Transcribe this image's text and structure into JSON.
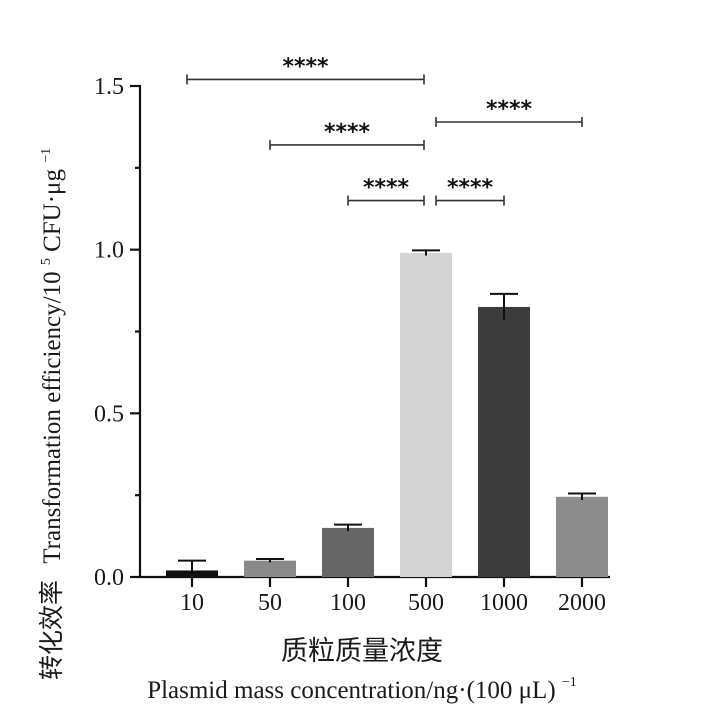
{
  "chart_data": {
    "type": "bar",
    "categories": [
      "10",
      "50",
      "100",
      "500",
      "1000",
      "2000"
    ],
    "values": [
      0.02,
      0.05,
      0.15,
      0.99,
      0.825,
      0.245
    ],
    "errors": [
      0.03,
      0.005,
      0.01,
      0.008,
      0.04,
      0.01
    ],
    "bar_colors": [
      "#111111",
      "#8a8a8a",
      "#666666",
      "#d4d4d4",
      "#3c3c3c",
      "#8c8c8c"
    ],
    "ylim": [
      0,
      1.5
    ],
    "yticks": [
      "0.0",
      "0.5",
      "1.0",
      "1.5"
    ],
    "xlabel_cn": "质粒质量浓度",
    "xlabel_en": "Plasmid  mass  concentration/ng·(100  μL)",
    "xlabel_en_sup": "−1",
    "ylabel_cn": "转化效率",
    "ylabel_en": "Transformation  efficiency/10",
    "ylabel_exp": "5",
    "ylabel_unit": " CFU·μg",
    "ylabel_unit_sup": "−1",
    "significance": [
      {
        "from": 0,
        "to": 3,
        "label": "****",
        "y": 1.52
      },
      {
        "from": 1,
        "to": 3,
        "label": "****",
        "y": 1.32
      },
      {
        "from": 2,
        "to": 3,
        "label": "****",
        "y": 1.15
      },
      {
        "from": 3,
        "to": 5,
        "label": "****",
        "y": 1.39
      },
      {
        "from": 3,
        "to": 4,
        "label": "****",
        "y": 1.15
      }
    ]
  }
}
